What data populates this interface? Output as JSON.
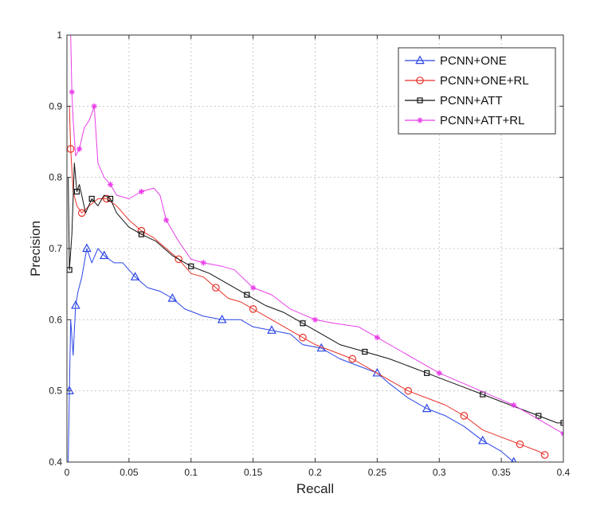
{
  "chart_data": {
    "type": "line",
    "xlabel": "Recall",
    "ylabel": "Precision",
    "xlim": [
      0,
      0.4
    ],
    "ylim": [
      0.4,
      1.0
    ],
    "x_ticks": [
      0,
      0.05,
      0.1,
      0.15,
      0.2,
      0.25,
      0.3,
      0.35,
      0.4
    ],
    "x_tick_labels": [
      "0",
      "0.05",
      "0.1",
      "0.15",
      "0.2",
      "0.25",
      "0.3",
      "0.35",
      "0.4"
    ],
    "y_ticks": [
      0.4,
      0.5,
      0.6,
      0.7,
      0.8,
      0.9,
      1.0
    ],
    "y_tick_labels": [
      "0.4",
      "0.5",
      "0.6",
      "0.7",
      "0.8",
      "0.9",
      "1"
    ],
    "grid": true,
    "legend_position": "top-right",
    "series": [
      {
        "name": "PCNN+ONE",
        "color": "#2a45e6",
        "marker": "triangle",
        "x": [
          0.001,
          0.002,
          0.003,
          0.005,
          0.007,
          0.009,
          0.012,
          0.016,
          0.02,
          0.025,
          0.03,
          0.038,
          0.045,
          0.055,
          0.065,
          0.075,
          0.085,
          0.095,
          0.11,
          0.125,
          0.14,
          0.15,
          0.165,
          0.18,
          0.19,
          0.205,
          0.22,
          0.235,
          0.25,
          0.26,
          0.275,
          0.29,
          0.305,
          0.32,
          0.335,
          0.35,
          0.36
        ],
        "y": [
          0.4,
          0.5,
          0.6,
          0.55,
          0.62,
          0.64,
          0.66,
          0.7,
          0.68,
          0.7,
          0.69,
          0.68,
          0.68,
          0.66,
          0.645,
          0.64,
          0.63,
          0.615,
          0.605,
          0.6,
          0.6,
          0.59,
          0.585,
          0.58,
          0.565,
          0.56,
          0.545,
          0.535,
          0.525,
          0.51,
          0.49,
          0.475,
          0.465,
          0.45,
          0.43,
          0.415,
          0.4
        ]
      },
      {
        "name": "PCNN+ONE+RL",
        "color": "#e8322a",
        "marker": "circle",
        "x": [
          0.002,
          0.003,
          0.005,
          0.008,
          0.012,
          0.018,
          0.025,
          0.032,
          0.04,
          0.05,
          0.06,
          0.07,
          0.08,
          0.09,
          0.1,
          0.11,
          0.12,
          0.13,
          0.14,
          0.15,
          0.165,
          0.18,
          0.19,
          0.2,
          0.215,
          0.23,
          0.245,
          0.26,
          0.275,
          0.29,
          0.305,
          0.32,
          0.335,
          0.35,
          0.365,
          0.38,
          0.385
        ],
        "y": [
          0.9,
          0.84,
          0.78,
          0.76,
          0.75,
          0.76,
          0.77,
          0.77,
          0.76,
          0.74,
          0.725,
          0.715,
          0.7,
          0.685,
          0.665,
          0.66,
          0.645,
          0.63,
          0.625,
          0.615,
          0.6,
          0.585,
          0.575,
          0.565,
          0.555,
          0.545,
          0.53,
          0.515,
          0.5,
          0.49,
          0.48,
          0.465,
          0.445,
          0.435,
          0.425,
          0.415,
          0.41
        ]
      },
      {
        "name": "PCNN+ATT",
        "color": "#111111",
        "marker": "square",
        "x": [
          0.001,
          0.002,
          0.004,
          0.006,
          0.008,
          0.01,
          0.015,
          0.02,
          0.025,
          0.03,
          0.035,
          0.04,
          0.05,
          0.06,
          0.072,
          0.085,
          0.1,
          0.115,
          0.13,
          0.145,
          0.16,
          0.175,
          0.19,
          0.205,
          0.22,
          0.24,
          0.26,
          0.275,
          0.29,
          0.305,
          0.32,
          0.335,
          0.35,
          0.365,
          0.38,
          0.395,
          0.4
        ],
        "y": [
          0.8,
          0.67,
          0.72,
          0.82,
          0.78,
          0.79,
          0.75,
          0.77,
          0.76,
          0.775,
          0.77,
          0.75,
          0.73,
          0.72,
          0.71,
          0.69,
          0.675,
          0.665,
          0.65,
          0.635,
          0.62,
          0.61,
          0.595,
          0.58,
          0.565,
          0.555,
          0.545,
          0.535,
          0.525,
          0.515,
          0.505,
          0.495,
          0.485,
          0.475,
          0.465,
          0.455,
          0.455
        ]
      },
      {
        "name": "PCNN+ATT+RL",
        "color": "#e83ee8",
        "marker": "star",
        "x": [
          0.003,
          0.004,
          0.005,
          0.007,
          0.01,
          0.014,
          0.018,
          0.022,
          0.025,
          0.03,
          0.035,
          0.04,
          0.05,
          0.06,
          0.07,
          0.075,
          0.08,
          0.09,
          0.1,
          0.11,
          0.125,
          0.135,
          0.15,
          0.165,
          0.18,
          0.2,
          0.215,
          0.235,
          0.25,
          0.27,
          0.285,
          0.3,
          0.32,
          0.34,
          0.36,
          0.38,
          0.4
        ],
        "y": [
          1.0,
          0.92,
          0.88,
          0.83,
          0.84,
          0.87,
          0.88,
          0.9,
          0.82,
          0.8,
          0.79,
          0.775,
          0.77,
          0.78,
          0.785,
          0.775,
          0.74,
          0.71,
          0.685,
          0.68,
          0.675,
          0.67,
          0.645,
          0.635,
          0.615,
          0.6,
          0.595,
          0.59,
          0.575,
          0.555,
          0.54,
          0.525,
          0.51,
          0.495,
          0.48,
          0.46,
          0.44
        ]
      }
    ]
  }
}
